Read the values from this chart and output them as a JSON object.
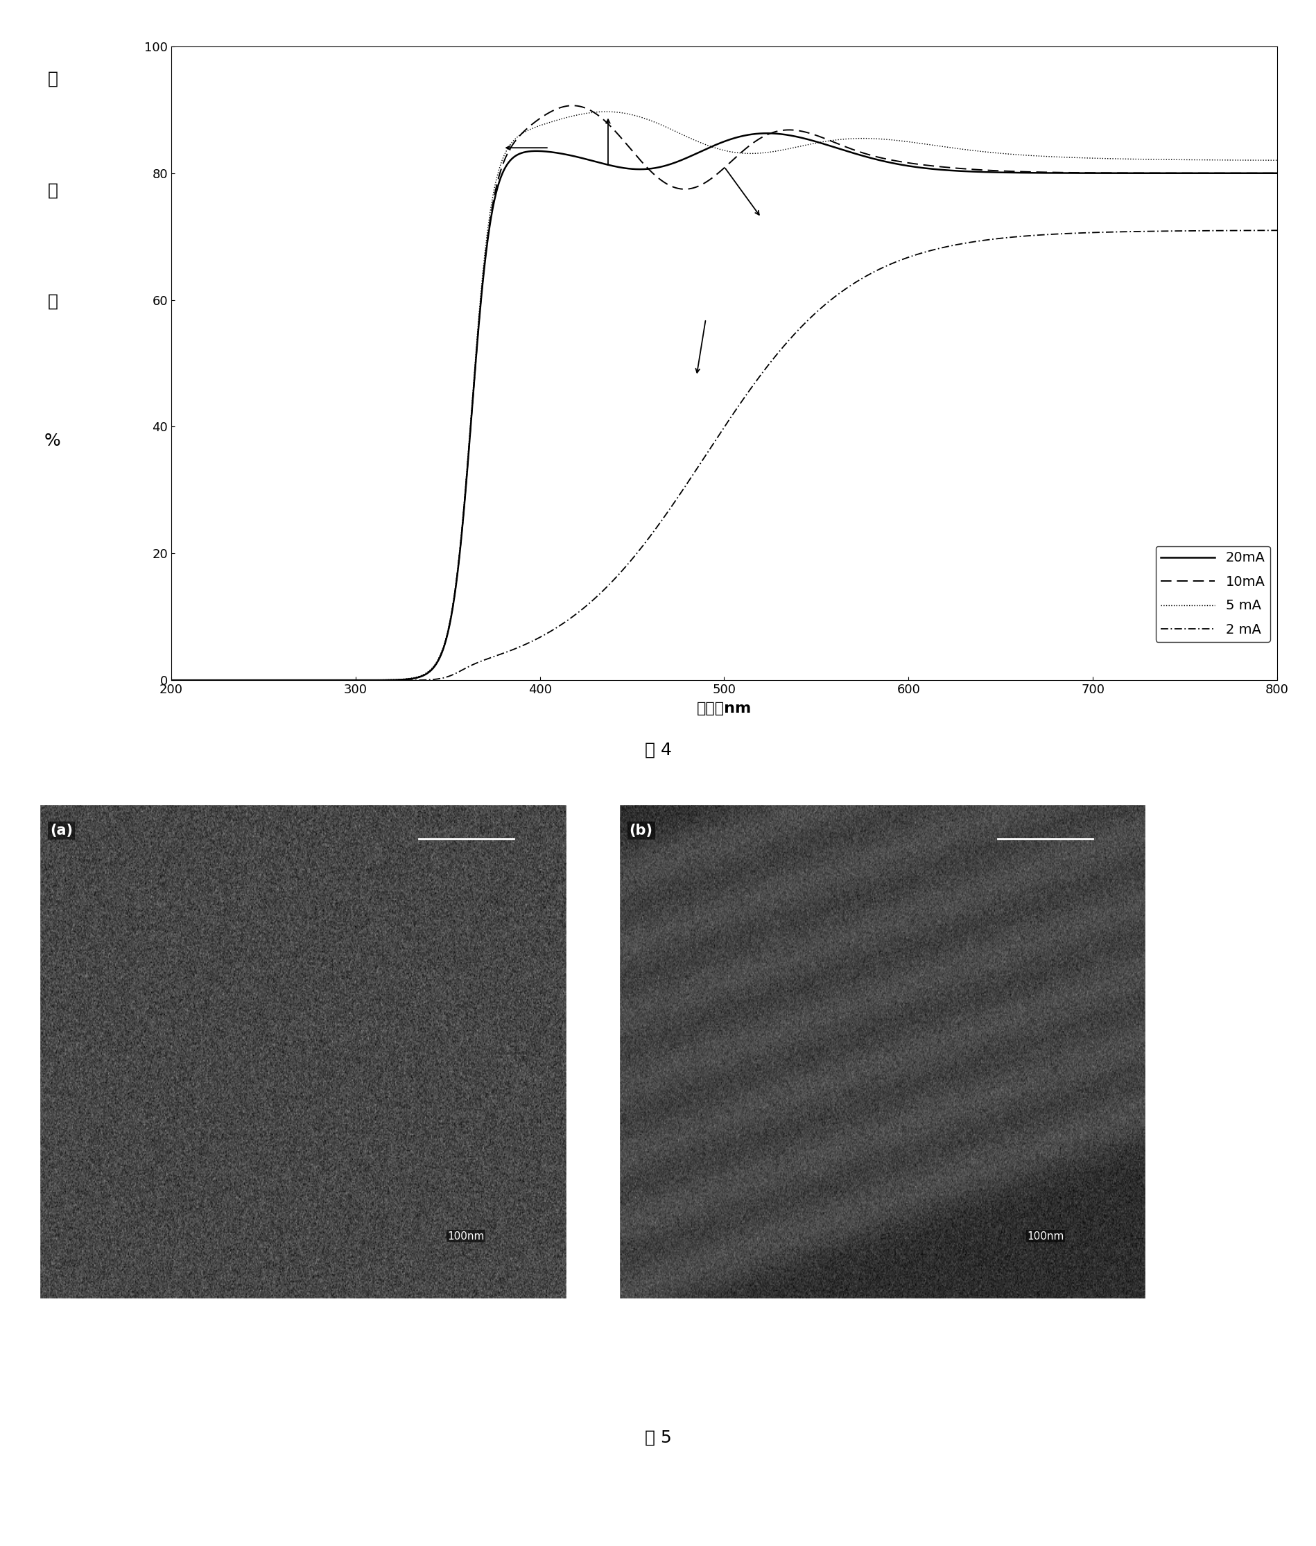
{
  "title_fig4": "图 4",
  "title_fig5": "图 5",
  "xlabel_top": "波长，            nm",
  "xlim": [
    200,
    800
  ],
  "ylim": [
    0,
    100
  ],
  "yticks": [
    0,
    20,
    40,
    60,
    80,
    100
  ],
  "xticks": [
    200,
    300,
    400,
    500,
    600,
    700,
    800
  ],
  "legend_labels": [
    "20mA",
    "10mA",
    "5 mA",
    "2 mA"
  ],
  "bg_color": "#ffffff",
  "line_color": "#000000",
  "label_a": "(a)",
  "label_b": "(b)",
  "scalebar_text": "100nm",
  "ylabel_chars": [
    "透",
    "过",
    "率",
    "%"
  ],
  "xlabel_str": "波长，nm"
}
